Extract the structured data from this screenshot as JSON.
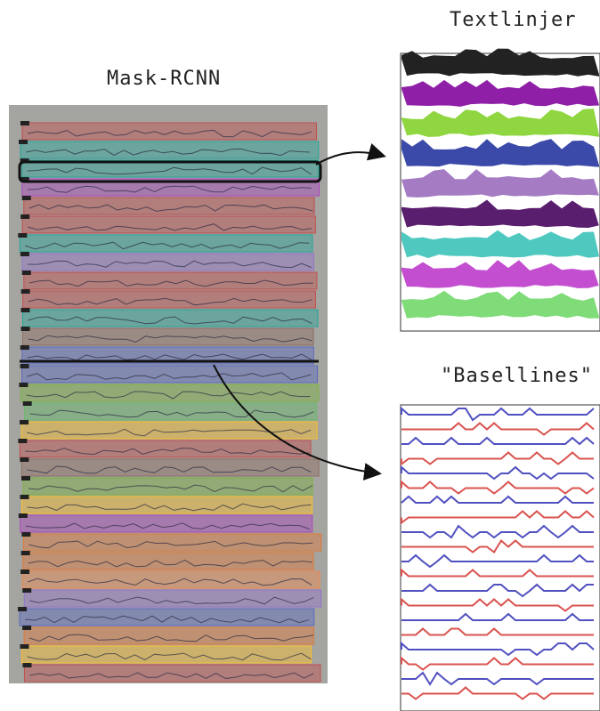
{
  "left_panel": {
    "title": "Mask-RCNN"
  },
  "top_right_panel": {
    "title": "Textlinjer"
  },
  "bottom_right_panel": {
    "title": "\"Basellines\""
  }
}
